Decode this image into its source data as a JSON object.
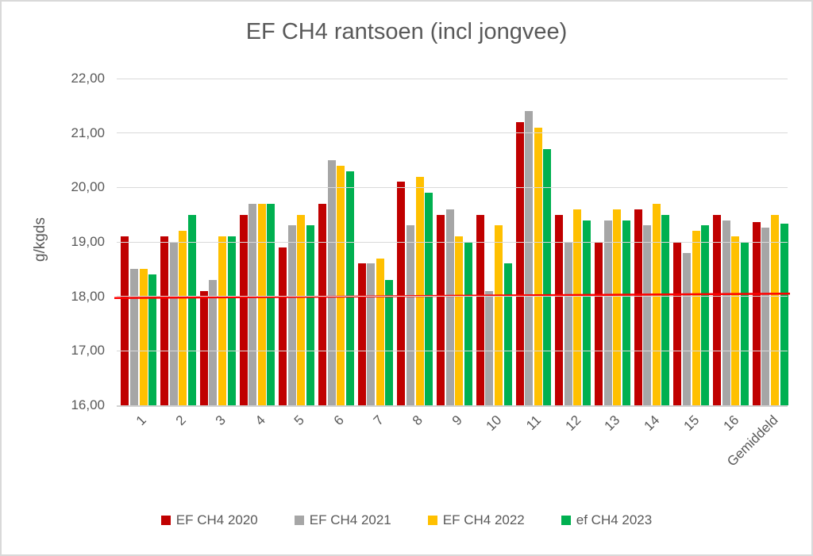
{
  "chart_data": {
    "type": "bar",
    "title": "EF CH4 rantsoen (incl jongvee)",
    "ylabel": "g/kgds",
    "xlabel": "",
    "ylim": [
      16,
      22
    ],
    "ytick_step": 1,
    "ytick_labels": [
      "16,00",
      "17,00",
      "18,00",
      "19,00",
      "20,00",
      "21,00",
      "22,00"
    ],
    "grid": true,
    "legend_position": "bottom",
    "categories": [
      "1",
      "2",
      "3",
      "4",
      "5",
      "6",
      "7",
      "8",
      "9",
      "10",
      "11",
      "12",
      "13",
      "14",
      "15",
      "16",
      "Gemiddeld"
    ],
    "series": [
      {
        "name": "EF CH4 2020",
        "color": "#C00000",
        "values": [
          19.1,
          19.1,
          18.1,
          19.5,
          18.9,
          19.7,
          18.6,
          20.1,
          19.5,
          19.5,
          21.2,
          19.5,
          19.0,
          19.6,
          19.0,
          19.5,
          19.37
        ]
      },
      {
        "name": "EF CH4 2021",
        "color": "#A6A6A6",
        "values": [
          18.5,
          19.0,
          18.3,
          19.7,
          19.3,
          20.5,
          18.6,
          19.3,
          19.6,
          18.1,
          21.4,
          19.0,
          19.4,
          19.3,
          18.8,
          19.4,
          19.26
        ]
      },
      {
        "name": "EF CH4 2022",
        "color": "#FFC000",
        "values": [
          18.5,
          19.2,
          19.1,
          19.7,
          19.5,
          20.4,
          18.7,
          20.2,
          19.1,
          19.3,
          21.1,
          19.6,
          19.6,
          19.7,
          19.2,
          19.1,
          19.5
        ]
      },
      {
        "name": "ef CH4 2023",
        "color": "#00B050",
        "values": [
          18.4,
          19.5,
          19.1,
          19.7,
          19.3,
          20.3,
          18.3,
          19.9,
          19.0,
          18.6,
          20.7,
          19.4,
          19.4,
          19.5,
          19.3,
          19.0,
          19.34
        ]
      }
    ],
    "reference_line": {
      "color": "#FF0000",
      "start_value": 17.97,
      "end_value": 18.05,
      "thickness": 2.5
    }
  },
  "colors": {
    "gridline": "#d9d9d9",
    "axis_text": "#595959",
    "background": "#ffffff",
    "frame_border": "#d9d9d9"
  }
}
